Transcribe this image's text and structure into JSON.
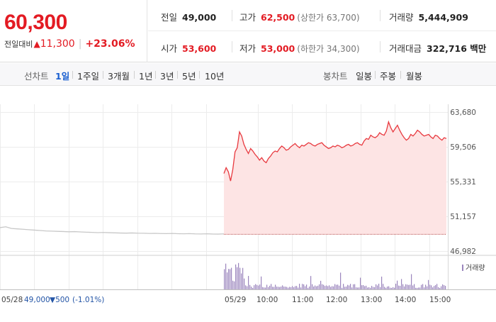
{
  "quote": {
    "price": "60,300",
    "change_label": "전일대비",
    "change_arrow": "▲",
    "change_value": "11,300",
    "change_percent": "+23.06%",
    "up_color": "#e31b23"
  },
  "stats": {
    "prev_close": {
      "label": "전일",
      "value": "49,000"
    },
    "high": {
      "label": "고가",
      "value": "62,500",
      "sub": "(상한가 63,700)"
    },
    "volume": {
      "label": "거래량",
      "value": "5,444,909"
    },
    "open": {
      "label": "시가",
      "value": "53,600"
    },
    "low": {
      "label": "저가",
      "value": "53,000",
      "sub": "(하한가 34,300)"
    },
    "trade_value": {
      "label": "거래대금",
      "value": "322,716 백만"
    }
  },
  "tabs": {
    "line_chart_label": "선차트",
    "line_periods": [
      "1일",
      "1주일",
      "3개월",
      "1년",
      "3년",
      "5년",
      "10년"
    ],
    "active_period": "1일",
    "candle_chart_label": "봉차트",
    "candle_periods": [
      "일봉",
      "주봉",
      "월봉"
    ]
  },
  "chart_data": {
    "type": "line",
    "y_ticks": [
      "63,680",
      "59,506",
      "55,331",
      "51,157",
      "46,982"
    ],
    "ylim": [
      46982,
      63680
    ],
    "baseline": 49000,
    "prev_day": {
      "label": "05/28",
      "close": "49,000",
      "change": "▼500",
      "change_pct": "(-1.01%)",
      "values": [
        49800,
        49900,
        49700,
        49650,
        49600,
        49550,
        49500,
        49450,
        49400,
        49380,
        49350,
        49330,
        49300,
        49320,
        49280,
        49250,
        49230,
        49200,
        49220,
        49190,
        49170,
        49150,
        49140,
        49160,
        49130,
        49120,
        49100,
        49110,
        49090,
        49080,
        49100,
        49070,
        49060,
        49080,
        49050,
        49040,
        49060,
        49030,
        49020,
        49050
      ]
    },
    "today": {
      "label": "05/29",
      "times": [
        "10:00",
        "11:00",
        "12:00",
        "13:00",
        "14:00",
        "15:00"
      ],
      "values": [
        56300,
        57000,
        56500,
        55400,
        56800,
        58900,
        59400,
        61300,
        60800,
        59800,
        59200,
        58700,
        59300,
        59000,
        58600,
        58300,
        57900,
        58200,
        57800,
        57600,
        58100,
        58400,
        58800,
        59000,
        58900,
        59300,
        59600,
        59400,
        59100,
        59200,
        59500,
        59700,
        59900,
        59600,
        59400,
        59700,
        59600,
        59800,
        60000,
        59900,
        59700,
        59600,
        59800,
        59900,
        60000,
        59700,
        59500,
        59300,
        59400,
        59600,
        59500,
        59700,
        59600,
        59400,
        59500,
        59700,
        59800,
        59600,
        59700,
        59900,
        60000,
        59800,
        59700,
        60200,
        60500,
        60400,
        60900,
        60700,
        60600,
        60800,
        61200,
        61000,
        60900,
        61400,
        62500,
        61800,
        61300,
        61700,
        62100,
        61500,
        61000,
        60600,
        60300,
        60500,
        61000,
        60800,
        61100,
        61500,
        61300,
        61000,
        60800,
        60900,
        61000,
        60700,
        60500,
        60900,
        60800,
        60500,
        60300,
        60600,
        60500
      ]
    },
    "volume_label": "거래량",
    "line_color": "#e8393f",
    "fill_color": "#fde4e4",
    "prev_line_color": "#c8c8c8",
    "volume_color": "#9b86bd"
  }
}
